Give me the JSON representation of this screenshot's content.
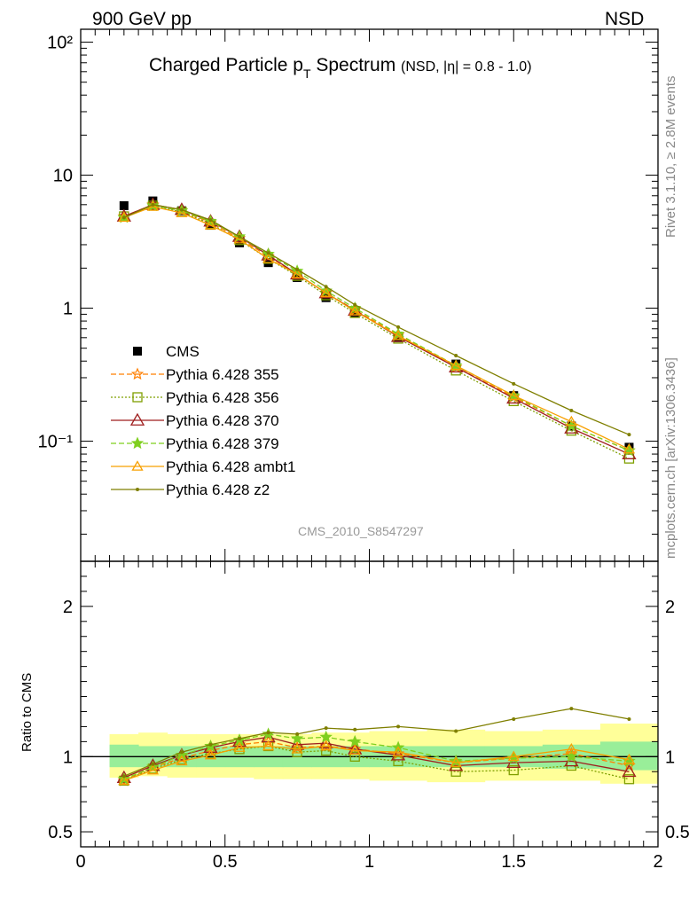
{
  "header": {
    "left_label": "900 GeV pp",
    "right_label": "NSD"
  },
  "side_labels": {
    "rivet": "Rivet 3.1.10, ≥ 2.8M events",
    "source": "mcplots.cern.ch [arXiv:1306.3436]"
  },
  "chart_data": [
    {
      "type": "line",
      "title_main": "Charged Particle p",
      "title_sub_T": "T",
      "title_rest": " Spectrum",
      "title_detail": "(NSD, |η| = 0.8 - 1.0)",
      "watermark": "CMS_2010_S8547297",
      "x_range": [
        0,
        2
      ],
      "y_range": [
        0.0125,
        125
      ],
      "y_scale": "log",
      "y_tick_labels": [
        "10⁻¹",
        "1",
        "10",
        "10²"
      ],
      "x": [
        0.15,
        0.25,
        0.35,
        0.45,
        0.55,
        0.65,
        0.75,
        0.85,
        0.95,
        1.1,
        1.3,
        1.5,
        1.7,
        1.9
      ],
      "legend_position": "left-middle",
      "series": [
        {
          "name": "CMS",
          "style": "data",
          "color": "#000000",
          "values": [
            5.9,
            6.4,
            5.4,
            4.2,
            3.1,
            2.2,
            1.7,
            1.2,
            0.92,
            0.6,
            0.38,
            0.22,
            0.13,
            0.09
          ]
        },
        {
          "name": "Pythia 6.428 355",
          "style": "star-dashed",
          "color": "#ff7f00",
          "values": [
            4.9,
            6.0,
            5.4,
            4.4,
            3.35,
            2.45,
            1.8,
            1.3,
            0.97,
            0.63,
            0.36,
            0.215,
            0.13,
            0.085
          ]
        },
        {
          "name": "Pythia 6.428 356",
          "style": "square-dotted",
          "color": "#7f9f00",
          "values": [
            4.9,
            5.9,
            5.3,
            4.3,
            3.25,
            2.35,
            1.75,
            1.25,
            0.92,
            0.59,
            0.34,
            0.2,
            0.12,
            0.074
          ]
        },
        {
          "name": "Pythia 6.428 370",
          "style": "triangle-solid",
          "color": "#9f1f1f",
          "values": [
            4.9,
            6.0,
            5.5,
            4.5,
            3.45,
            2.5,
            1.8,
            1.3,
            0.96,
            0.61,
            0.36,
            0.21,
            0.125,
            0.08
          ]
        },
        {
          "name": "Pythia 6.428 379",
          "style": "star-dashed",
          "color": "#7fcf1f",
          "values": [
            4.8,
            5.9,
            5.4,
            4.5,
            3.45,
            2.55,
            1.9,
            1.35,
            1.0,
            0.64,
            0.37,
            0.22,
            0.13,
            0.085
          ]
        },
        {
          "name": "Pythia 6.428 ambt1",
          "style": "triangle-solid-light",
          "color": "#f8a000",
          "values": [
            4.8,
            5.8,
            5.2,
            4.2,
            3.3,
            2.35,
            1.8,
            1.3,
            0.95,
            0.62,
            0.37,
            0.22,
            0.14,
            0.087
          ]
        },
        {
          "name": "Pythia 6.428 z2",
          "style": "dot-solid",
          "color": "#7f7f00",
          "values": [
            4.8,
            6.0,
            5.5,
            4.6,
            3.45,
            2.6,
            1.95,
            1.45,
            1.06,
            0.72,
            0.44,
            0.27,
            0.17,
            0.112
          ]
        }
      ]
    },
    {
      "type": "line",
      "ylabel": "Ratio to CMS",
      "x_range": [
        0,
        2
      ],
      "y_range": [
        0.4,
        2.3
      ],
      "y_tick_labels": [
        "0.5",
        "1",
        "2"
      ],
      "x_tick_labels": [
        "0",
        "0.5",
        "1",
        "1.5",
        "2"
      ],
      "reference": 1,
      "x": [
        0.15,
        0.25,
        0.35,
        0.45,
        0.55,
        0.65,
        0.75,
        0.85,
        0.95,
        1.1,
        1.3,
        1.5,
        1.7,
        1.9
      ],
      "band_edges": [
        0.1,
        0.2,
        0.3,
        0.4,
        0.5,
        0.6,
        0.7,
        0.8,
        0.9,
        1.0,
        1.2,
        1.4,
        1.6,
        1.8,
        2.0
      ],
      "band_inner": [
        [
          0.93,
          1.08
        ],
        [
          0.93,
          1.07
        ],
        [
          0.93,
          1.07
        ],
        [
          0.93,
          1.07
        ],
        [
          0.93,
          1.07
        ],
        [
          0.93,
          1.07
        ],
        [
          0.93,
          1.07
        ],
        [
          0.93,
          1.07
        ],
        [
          0.93,
          1.07
        ],
        [
          0.93,
          1.07
        ],
        [
          0.93,
          1.07
        ],
        [
          0.93,
          1.07
        ],
        [
          0.92,
          1.08
        ],
        [
          0.91,
          1.1
        ]
      ],
      "band_outer": [
        [
          0.86,
          1.15
        ],
        [
          0.87,
          1.16
        ],
        [
          0.86,
          1.15
        ],
        [
          0.86,
          1.15
        ],
        [
          0.86,
          1.15
        ],
        [
          0.85,
          1.15
        ],
        [
          0.85,
          1.15
        ],
        [
          0.85,
          1.16
        ],
        [
          0.85,
          1.16
        ],
        [
          0.84,
          1.17
        ],
        [
          0.83,
          1.18
        ],
        [
          0.84,
          1.17
        ],
        [
          0.84,
          1.18
        ],
        [
          0.82,
          1.22
        ]
      ],
      "series": [
        {
          "name": "Pythia 6.428 355",
          "style": "star-dashed",
          "color": "#ff7f00",
          "values": [
            0.84,
            0.93,
            0.99,
            1.04,
            1.08,
            1.1,
            1.06,
            1.07,
            1.05,
            1.02,
            0.96,
            0.99,
            1.02,
            0.94
          ]
        },
        {
          "name": "Pythia 6.428 356",
          "style": "square-dotted",
          "color": "#7f9f00",
          "values": [
            0.84,
            0.92,
            0.98,
            1.02,
            1.05,
            1.07,
            1.03,
            1.04,
            1.0,
            0.97,
            0.9,
            0.91,
            0.94,
            0.85
          ]
        },
        {
          "name": "Pythia 6.428 370",
          "style": "triangle-solid",
          "color": "#9f1f1f",
          "values": [
            0.86,
            0.94,
            1.01,
            1.06,
            1.1,
            1.13,
            1.08,
            1.09,
            1.05,
            1.01,
            0.94,
            0.96,
            0.97,
            0.9
          ]
        },
        {
          "name": "Pythia 6.428 379",
          "style": "star-dashed",
          "color": "#7fcf1f",
          "values": [
            0.85,
            0.93,
            1.01,
            1.07,
            1.11,
            1.15,
            1.12,
            1.13,
            1.1,
            1.06,
            0.97,
            0.99,
            1.0,
            0.97
          ]
        },
        {
          "name": "Pythia 6.428 ambt1",
          "style": "triangle-solid-light",
          "color": "#f8a000",
          "values": [
            0.84,
            0.91,
            0.97,
            1.01,
            1.06,
            1.07,
            1.05,
            1.07,
            1.04,
            1.03,
            0.96,
            1.0,
            1.05,
            0.98
          ]
        },
        {
          "name": "Pythia 6.428 z2",
          "style": "dot-solid",
          "color": "#7f7f00",
          "values": [
            0.87,
            0.95,
            1.03,
            1.08,
            1.12,
            1.16,
            1.15,
            1.19,
            1.18,
            1.2,
            1.17,
            1.25,
            1.32,
            1.25
          ]
        }
      ]
    }
  ]
}
